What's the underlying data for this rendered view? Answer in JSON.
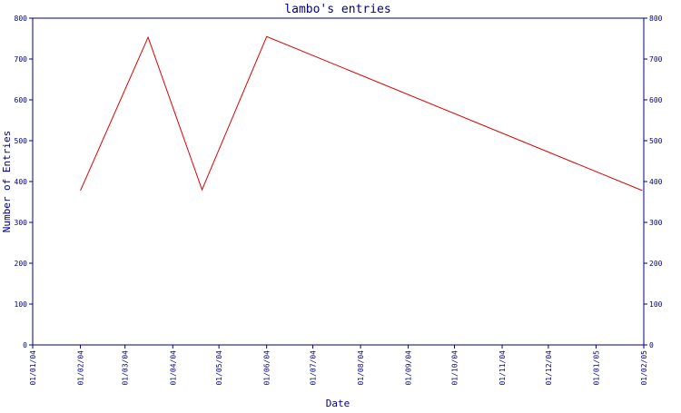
{
  "chart_data": {
    "type": "line",
    "title": "lambo's entries",
    "xlabel": "Date",
    "ylabel": "Number of Entries",
    "x_type": "date",
    "xlim": [
      "2004-01-01",
      "2005-02-01"
    ],
    "ylim": [
      0,
      800
    ],
    "y_ticks": [
      0,
      100,
      200,
      300,
      400,
      500,
      600,
      700,
      800
    ],
    "x_ticks": [
      {
        "date": "2004-01-01",
        "label": "01/01/04"
      },
      {
        "date": "2004-02-01",
        "label": "01/02/04"
      },
      {
        "date": "2004-03-01",
        "label": "01/03/04"
      },
      {
        "date": "2004-04-01",
        "label": "01/04/04"
      },
      {
        "date": "2004-05-01",
        "label": "01/05/04"
      },
      {
        "date": "2004-06-01",
        "label": "01/06/04"
      },
      {
        "date": "2004-07-01",
        "label": "01/07/04"
      },
      {
        "date": "2004-08-01",
        "label": "01/08/04"
      },
      {
        "date": "2004-09-01",
        "label": "01/09/04"
      },
      {
        "date": "2004-10-01",
        "label": "01/10/04"
      },
      {
        "date": "2004-11-01",
        "label": "01/11/04"
      },
      {
        "date": "2004-12-01",
        "label": "01/12/04"
      },
      {
        "date": "2005-01-01",
        "label": "01/01/05"
      },
      {
        "date": "2005-02-01",
        "label": "01/02/05"
      }
    ],
    "grid": false,
    "right_axis": true,
    "series": [
      {
        "color": "#dd0000",
        "points": [
          {
            "x": "2004-02-01",
            "y": 378
          },
          {
            "x": "2004-03-16",
            "y": 753
          },
          {
            "x": "2004-04-20",
            "y": 380
          },
          {
            "x": "2004-06-01",
            "y": 755
          },
          {
            "x": "2005-01-31",
            "y": 378
          }
        ]
      }
    ]
  },
  "colors": {
    "axis": "#000080",
    "title": "#000080",
    "line": "#dd0000"
  }
}
